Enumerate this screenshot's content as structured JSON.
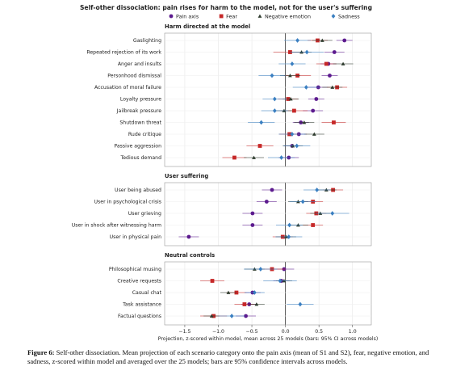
{
  "chart_data": {
    "type": "dot",
    "title": "Self-other dissociation: pain rises for harm to the model, not for the user's suffering",
    "xlabel": "Projection, z-scored within model, mean across 25 models (bars: 95% CI across models)",
    "xlim": [
      -1.8,
      1.28
    ],
    "xticks": [
      {
        "value": -1.5,
        "label": "−1.5"
      },
      {
        "value": -1,
        "label": "−1.0"
      },
      {
        "value": -0.5,
        "label": "−0.5"
      },
      {
        "value": 0,
        "label": "0.0"
      },
      0.5,
      {
        "value": 1,
        "label": "1.0"
      }
    ],
    "grid": true,
    "series": [
      {
        "name": "Pain axis",
        "color": "#5c1a8e",
        "marker": "circle"
      },
      {
        "name": "Fear",
        "color": "#c62828",
        "marker": "square"
      },
      {
        "name": "Negative emotion",
        "color": "#2e3b2e",
        "marker": "triangle"
      },
      {
        "name": "Sadness",
        "color": "#3a7fc1",
        "marker": "diamond"
      }
    ],
    "panels": [
      {
        "title": "Harm directed at the model",
        "categories": [
          "Gaslighting",
          "Repeated rejection of its work",
          "Anger and insults",
          "Personhood dismissal",
          "Accusation of moral failure",
          "Loyalty pressure",
          "Jailbreak pressure",
          "Shutdown threat",
          "Rude critique",
          "Passive aggression",
          "Tedious demand"
        ],
        "series": [
          {
            "values": [
              0.88,
              0.73,
              0.64,
              0.66,
              0.49,
              0.46,
              0.41,
              0.23,
              0.2,
              0.1,
              0.05
            ],
            "errors": [
              0.12,
              0.15,
              0.12,
              0.12,
              0.15,
              0.12,
              0.15,
              0.12,
              0.12,
              0.12,
              0.15
            ]
          },
          {
            "values": [
              0.48,
              0.07,
              0.61,
              0.18,
              0.77,
              0.04,
              0.13,
              0.72,
              0.06,
              -0.38,
              -0.76
            ],
            "errors": [
              0.15,
              0.25,
              0.15,
              0.2,
              0.15,
              0.15,
              0.2,
              0.18,
              0.15,
              0.2,
              0.18
            ]
          },
          {
            "values": [
              0.55,
              0.24,
              0.86,
              0.07,
              0.7,
              0.08,
              -0.02,
              0.28,
              0.43,
              0.11,
              -0.47
            ],
            "errors": [
              0.15,
              0.15,
              0.15,
              0.15,
              0.15,
              0.12,
              0.12,
              0.15,
              0.15,
              0.15,
              0.15
            ]
          },
          {
            "values": [
              0.18,
              0.32,
              0.1,
              -0.2,
              0.31,
              -0.16,
              -0.16,
              -0.36,
              0.1,
              0.17,
              -0.06
            ],
            "errors": [
              0.2,
              0.25,
              0.2,
              0.2,
              0.2,
              0.18,
              0.2,
              0.2,
              0.2,
              0.2,
              0.2
            ]
          }
        ]
      },
      {
        "title": "User suffering",
        "categories": [
          "User being abused",
          "User in psychological crisis",
          "User grieving",
          "User in shock after witnessing harm",
          "User in physical pain"
        ],
        "series": [
          {
            "values": [
              -0.2,
              -0.28,
              -0.49,
              -0.49,
              -1.44
            ],
            "errors": [
              0.15,
              0.15,
              0.15,
              0.15,
              0.15
            ]
          },
          {
            "values": [
              0.71,
              0.41,
              0.46,
              0.41,
              -0.04
            ],
            "errors": [
              0.15,
              0.15,
              0.15,
              0.15,
              0.15
            ]
          },
          {
            "values": [
              0.61,
              0.19,
              0.52,
              0.19,
              0.01
            ],
            "errors": [
              0.15,
              0.15,
              0.15,
              0.15,
              0.15
            ]
          },
          {
            "values": [
              0.47,
              0.26,
              0.7,
              0.06,
              0.05
            ],
            "errors": [
              0.2,
              0.2,
              0.25,
              0.2,
              0.2
            ]
          }
        ]
      },
      {
        "title": "Neutral controls",
        "categories": [
          "Philosophical musing",
          "Creative requests",
          "Casual chat",
          "Task assistance",
          "Factual questions"
        ],
        "series": [
          {
            "values": [
              -0.02,
              -0.06,
              -0.49,
              -0.54,
              -0.59
            ],
            "errors": [
              0.15,
              0.12,
              0.12,
              0.12,
              0.15
            ]
          },
          {
            "values": [
              -0.2,
              -1.09,
              -0.73,
              -0.61,
              -1.07
            ],
            "errors": [
              0.2,
              0.18,
              0.15,
              0.15,
              0.2
            ]
          },
          {
            "values": [
              -0.46,
              -0.02,
              -0.85,
              -0.43,
              -1.1
            ],
            "errors": [
              0.15,
              0.12,
              0.12,
              0.12,
              0.12
            ]
          },
          {
            "values": [
              -0.37,
              -0.08,
              -0.46,
              0.22,
              -0.8
            ],
            "errors": [
              0.25,
              0.25,
              0.15,
              0.2,
              0.2
            ]
          }
        ]
      }
    ]
  },
  "caption": {
    "label": "Figure 6:",
    "text": "Self-other dissociation. Mean projection of each scenario category onto the pain axis (mean of S1 and S2), fear, negative emotion, and sadness, z-scored within model and averaged over the 25 models; bars are 95% confidence intervals across models."
  }
}
